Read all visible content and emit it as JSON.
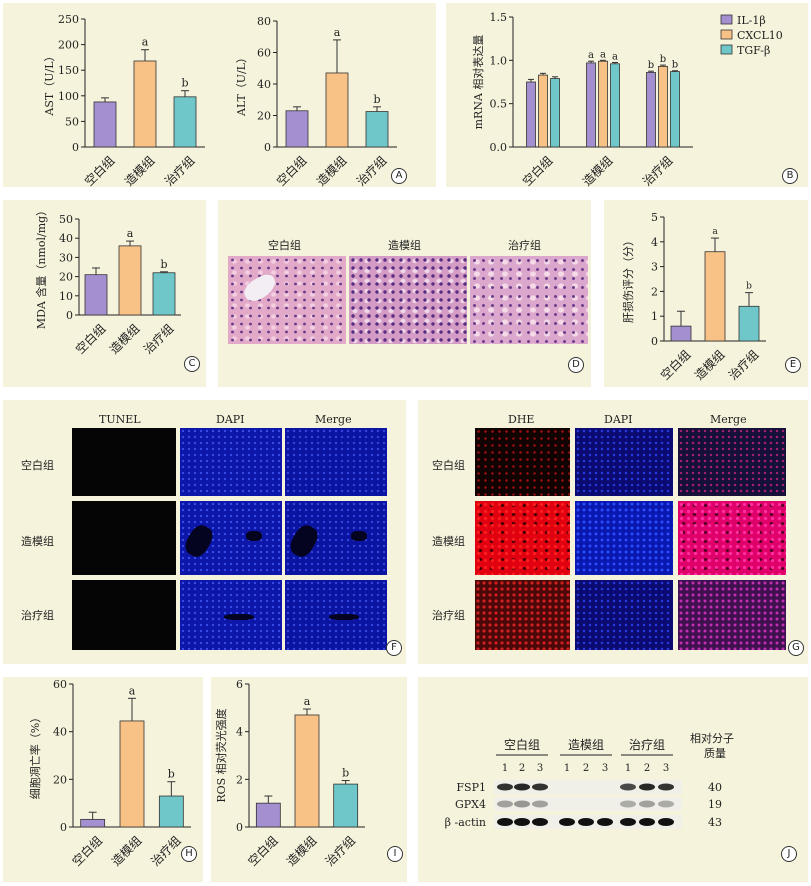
{
  "panels": {
    "A": {
      "label": "A",
      "ast": {
        "ylabel": "AST（U/L）",
        "yticks": [
          "0",
          "50",
          "100",
          "150",
          "200",
          "250"
        ],
        "cats": [
          "空白组",
          "造模组",
          "治疗组"
        ],
        "values": [
          88,
          168,
          98
        ],
        "errors": [
          8,
          22,
          12
        ],
        "letters": [
          "",
          "a",
          "b"
        ]
      },
      "alt": {
        "ylabel": "ALT（U/L）",
        "yticks": [
          "0",
          "20",
          "40",
          "60",
          "80"
        ],
        "cats": [
          "空白组",
          "造模组",
          "治疗组"
        ],
        "values": [
          23,
          47,
          22.5
        ],
        "errors": [
          2.5,
          21,
          3
        ],
        "letters": [
          "",
          "a",
          "b"
        ]
      }
    },
    "B": {
      "label": "B",
      "ylabel": "mRNA 相对表达量",
      "yticks": [
        "0.0",
        "0.5",
        "1.0",
        "1.5"
      ],
      "cats": [
        "空白组",
        "造模组",
        "治疗组"
      ],
      "legend": [
        "IL-1β",
        "CXCL10",
        "TGF-β"
      ],
      "series": [
        [
          0.75,
          0.97,
          0.86
        ],
        [
          0.83,
          0.99,
          0.93
        ],
        [
          0.79,
          0.96,
          0.87
        ]
      ],
      "errors": [
        [
          0.03,
          0.02,
          0.015
        ],
        [
          0.02,
          0.01,
          0.015
        ],
        [
          0.02,
          0.015,
          0.01
        ]
      ],
      "letters": [
        "",
        "a",
        "b"
      ]
    },
    "C": {
      "label": "C",
      "ylabel": "MDA 含量（nmol/mg）",
      "yticks": [
        "0",
        "10",
        "20",
        "30",
        "40",
        "50"
      ],
      "cats": [
        "空白组",
        "造模组",
        "治疗组"
      ],
      "values": [
        21,
        36,
        22
      ],
      "errors": [
        3.5,
        2.5,
        0.5
      ],
      "letters": [
        "",
        "a",
        "b"
      ]
    },
    "D": {
      "label": "D",
      "titles": [
        "空白组",
        "造模组",
        "治疗组"
      ]
    },
    "E": {
      "label": "E",
      "ylabel": "肝损伤评分（分）",
      "yticks": [
        "0",
        "1",
        "2",
        "3",
        "4",
        "5"
      ],
      "cats": [
        "空白组",
        "造模组",
        "治疗组"
      ],
      "values": [
        0.6,
        3.6,
        1.4
      ],
      "errors": [
        0.6,
        0.55,
        0.55
      ],
      "letters": [
        "",
        "a",
        "b"
      ]
    },
    "F": {
      "label": "F",
      "cols": [
        "TUNEL",
        "DAPI",
        "Merge"
      ],
      "rows": [
        "空白组",
        "造模组",
        "治疗组"
      ]
    },
    "G": {
      "label": "G",
      "cols": [
        "DHE",
        "DAPI",
        "Merge"
      ],
      "rows": [
        "空白组",
        "造模组",
        "治疗组"
      ]
    },
    "H": {
      "label": "H",
      "ylabel": "细胞凋亡率（%）",
      "yticks": [
        "0",
        "20",
        "40",
        "60"
      ],
      "cats": [
        "空白组",
        "造模组",
        "治疗组"
      ],
      "values": [
        3.2,
        44.5,
        13
      ],
      "errors": [
        3,
        9.5,
        6
      ],
      "letters": [
        "",
        "a",
        "b"
      ]
    },
    "I": {
      "label": "I",
      "ylabel": "ROS 相对荧光强度",
      "yticks": [
        "0",
        "2",
        "4",
        "6"
      ],
      "cats": [
        "空白组",
        "造模组",
        "治疗组"
      ],
      "values": [
        1.0,
        4.7,
        1.8
      ],
      "errors": [
        0.3,
        0.25,
        0.15
      ],
      "letters": [
        "",
        "a",
        "b"
      ]
    },
    "J": {
      "label": "J",
      "groups": [
        "空白组",
        "造模组",
        "治疗组"
      ],
      "lanes": [
        "1",
        "2",
        "3",
        "1",
        "2",
        "3",
        "1",
        "2",
        "3"
      ],
      "mw_header_1": "相对分子",
      "mw_header_2": "质量",
      "proteins": [
        {
          "name": "FSP1",
          "mw": "40"
        },
        {
          "name": "GPX4",
          "mw": "19"
        },
        {
          "name": "β -actin",
          "mw": "43"
        }
      ]
    }
  },
  "colors": {
    "blank": "#a48fd0",
    "model": "#f8c186",
    "treat": "#6fc7c9",
    "panel_bg": "#f6f3dc"
  }
}
